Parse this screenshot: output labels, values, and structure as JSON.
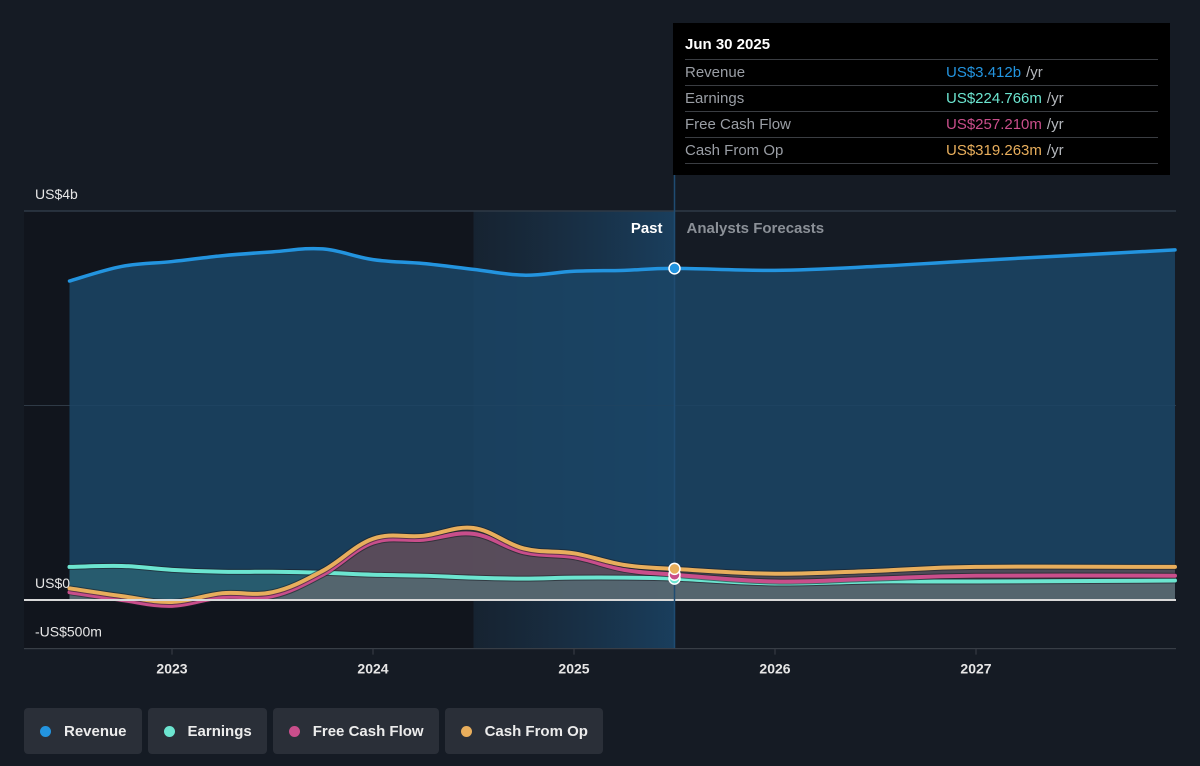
{
  "tooltip": {
    "date": "Jun 30 2025",
    "rows": [
      {
        "name": "Revenue",
        "value": "US$3.412b",
        "unit": "/yr",
        "color": "#2394df"
      },
      {
        "name": "Earnings",
        "value": "US$224.766m",
        "unit": "/yr",
        "color": "#6ce5d0"
      },
      {
        "name": "Free Cash Flow",
        "value": "US$257.210m",
        "unit": "/yr",
        "color": "#c94e8b"
      },
      {
        "name": "Cash From Op",
        "value": "US$319.263m",
        "unit": "/yr",
        "color": "#e8ae5c"
      }
    ]
  },
  "legend": [
    {
      "label": "Revenue",
      "color": "#2394df"
    },
    {
      "label": "Earnings",
      "color": "#6ce5d0"
    },
    {
      "label": "Free Cash Flow",
      "color": "#c94e8b"
    },
    {
      "label": "Cash From Op",
      "color": "#e8ae5c"
    }
  ],
  "chart_data": {
    "type": "area",
    "title": "",
    "xlabel": "",
    "ylabel": "",
    "units": "US$ billions",
    "x_range": [
      2022.49,
      2027.99
    ],
    "ylim": [
      -0.5,
      4.0
    ],
    "y_ticks": [
      {
        "value": 4.0,
        "label": "US$4b"
      },
      {
        "value": 0,
        "label": "US$0"
      },
      {
        "value": -0.5,
        "label": "-US$500m"
      }
    ],
    "y_gridlines": [
      4.0,
      2.0,
      0,
      -0.5
    ],
    "x_ticks": [
      {
        "value": 2023,
        "label": "2023"
      },
      {
        "value": 2024,
        "label": "2024"
      },
      {
        "value": 2025,
        "label": "2025"
      },
      {
        "value": 2026,
        "label": "2026"
      },
      {
        "value": 2027,
        "label": "2027"
      }
    ],
    "divider_x": 2025.5,
    "highlight_start_x": 2024.5,
    "region_labels": {
      "past": "Past",
      "forecast": "Analysts Forecasts"
    },
    "legend_position": "bottom-left",
    "series": [
      {
        "name": "Revenue",
        "color": "#2394df",
        "x": [
          2022.49,
          2022.75,
          2023.0,
          2023.25,
          2023.5,
          2023.75,
          2024.0,
          2024.25,
          2024.5,
          2024.75,
          2025.0,
          2025.25,
          2025.5,
          2026.0,
          2026.5,
          2027.0,
          2027.99
        ],
        "values": [
          3.28,
          3.43,
          3.48,
          3.54,
          3.58,
          3.61,
          3.5,
          3.46,
          3.4,
          3.34,
          3.38,
          3.39,
          3.41,
          3.39,
          3.43,
          3.49,
          3.6
        ]
      },
      {
        "name": "Earnings",
        "color": "#6ce5d0",
        "x": [
          2022.49,
          2022.75,
          2023.0,
          2023.25,
          2023.5,
          2023.75,
          2024.0,
          2024.25,
          2024.5,
          2024.75,
          2025.0,
          2025.25,
          2025.5,
          2026.0,
          2026.5,
          2027.0,
          2027.99
        ],
        "values": [
          0.34,
          0.35,
          0.31,
          0.29,
          0.29,
          0.28,
          0.26,
          0.25,
          0.23,
          0.22,
          0.23,
          0.23,
          0.22,
          0.17,
          0.19,
          0.19,
          0.2
        ]
      },
      {
        "name": "Free Cash Flow",
        "color": "#c94e8b",
        "x": [
          2022.49,
          2022.75,
          2023.0,
          2023.25,
          2023.5,
          2023.75,
          2024.0,
          2024.25,
          2024.5,
          2024.75,
          2025.0,
          2025.25,
          2025.5,
          2026.0,
          2026.5,
          2027.0,
          2027.99
        ],
        "values": [
          0.08,
          0.0,
          -0.06,
          0.03,
          0.04,
          0.26,
          0.59,
          0.62,
          0.68,
          0.49,
          0.44,
          0.31,
          0.26,
          0.19,
          0.22,
          0.25,
          0.25
        ]
      },
      {
        "name": "Cash From Op",
        "color": "#e8ae5c",
        "x": [
          2022.49,
          2022.75,
          2023.0,
          2023.25,
          2023.5,
          2023.75,
          2024.0,
          2024.25,
          2024.5,
          2024.75,
          2025.0,
          2025.25,
          2025.5,
          2026.0,
          2026.5,
          2027.0,
          2027.99
        ],
        "values": [
          0.12,
          0.04,
          -0.02,
          0.07,
          0.08,
          0.3,
          0.63,
          0.66,
          0.74,
          0.53,
          0.48,
          0.36,
          0.32,
          0.27,
          0.3,
          0.34,
          0.34
        ]
      }
    ]
  }
}
